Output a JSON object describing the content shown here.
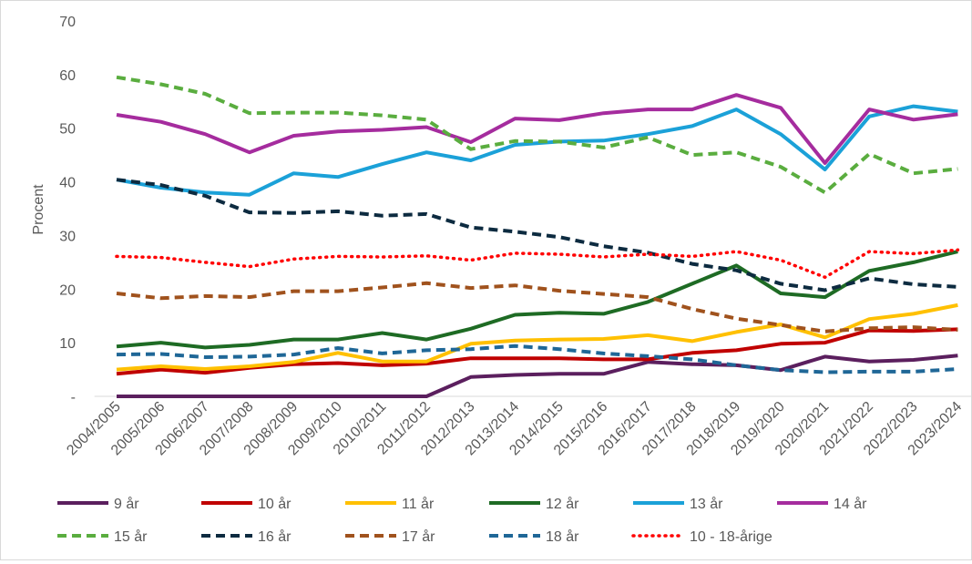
{
  "chart_data": {
    "type": "line",
    "title": "",
    "xlabel": "",
    "ylabel": "Procent",
    "ylim": [
      0,
      70
    ],
    "yticks": [
      0,
      10,
      20,
      30,
      40,
      50,
      60,
      70
    ],
    "ytick_labels": [
      "-",
      "10",
      "20",
      "30",
      "40",
      "50",
      "60",
      "70"
    ],
    "grid": false,
    "legend_position": "bottom",
    "categories": [
      "2004/2005",
      "2005/2006",
      "2006/2007",
      "2007/2008",
      "2008/2009",
      "2009/2010",
      "2010/2011",
      "2011/2012",
      "2012/2013",
      "2013/2014",
      "2014/2015",
      "2015/2016",
      "2016/2017",
      "2017/2018",
      "2018/2019",
      "2019/2020",
      "2020/2021",
      "2021/2022",
      "2022/2023",
      "2023/2024"
    ],
    "series": [
      {
        "name": "9 år",
        "color": "#5b1f5e",
        "dash": "solid",
        "values": [
          0,
          0,
          0,
          0,
          0,
          0,
          0,
          0,
          3.6,
          4.0,
          4.2,
          4.2,
          6.4,
          6.0,
          5.8,
          4.9,
          7.4,
          6.5,
          6.8,
          7.6
        ]
      },
      {
        "name": "10 år",
        "color": "#c00000",
        "dash": "solid",
        "values": [
          4.2,
          5.0,
          4.4,
          5.3,
          6.0,
          6.2,
          5.8,
          6.1,
          7.1,
          7.1,
          7.1,
          6.9,
          6.9,
          8.1,
          8.6,
          9.8,
          10.0,
          12.3,
          12.2,
          12.5
        ]
      },
      {
        "name": "11 år",
        "color": "#ffc000",
        "dash": "solid",
        "values": [
          5.0,
          5.6,
          5.1,
          5.6,
          6.4,
          8.1,
          6.5,
          6.5,
          9.8,
          10.4,
          10.6,
          10.7,
          11.4,
          10.3,
          12.0,
          13.4,
          11.0,
          14.4,
          15.4,
          17.0
        ]
      },
      {
        "name": "12 år",
        "color": "#1e6b24",
        "dash": "solid",
        "values": [
          9.3,
          10.0,
          9.1,
          9.6,
          10.6,
          10.6,
          11.8,
          10.6,
          12.6,
          15.2,
          15.6,
          15.4,
          17.6,
          21.0,
          24.4,
          19.2,
          18.5,
          23.4,
          25.0,
          27.0
        ]
      },
      {
        "name": "13 år",
        "color": "#1ba1d8",
        "dash": "solid",
        "values": [
          40.4,
          38.9,
          38.0,
          37.6,
          41.6,
          40.9,
          43.3,
          45.5,
          44.0,
          46.9,
          47.5,
          47.7,
          48.9,
          50.4,
          53.5,
          48.9,
          42.3,
          52.2,
          54.1,
          53.1
        ]
      },
      {
        "name": "14 år",
        "color": "#a52c9e",
        "dash": "solid",
        "values": [
          52.5,
          51.2,
          48.9,
          45.5,
          48.6,
          49.4,
          49.7,
          50.2,
          47.4,
          51.8,
          51.5,
          52.8,
          53.5,
          53.5,
          56.2,
          53.8,
          43.5,
          53.5,
          51.6,
          52.6
        ]
      },
      {
        "name": "15 år",
        "color": "#5aad3f",
        "dash": "dash",
        "values": [
          59.5,
          58.2,
          56.4,
          52.8,
          52.9,
          52.9,
          52.4,
          51.6,
          46.1,
          47.6,
          47.5,
          46.4,
          48.3,
          45.0,
          45.5,
          42.8,
          38.0,
          45.2,
          41.6,
          42.4
        ]
      },
      {
        "name": "16 år",
        "color": "#0d2b40",
        "dash": "dash",
        "values": [
          40.4,
          39.4,
          37.4,
          34.3,
          34.2,
          34.5,
          33.7,
          34.0,
          31.5,
          30.7,
          29.7,
          28.0,
          26.8,
          24.7,
          23.5,
          21.0,
          19.8,
          22.0,
          20.9,
          20.4
        ]
      },
      {
        "name": "17 år",
        "color": "#a0521d",
        "dash": "dash",
        "values": [
          19.2,
          18.3,
          18.7,
          18.5,
          19.6,
          19.6,
          20.3,
          21.1,
          20.2,
          20.7,
          19.7,
          19.1,
          18.5,
          16.3,
          14.5,
          13.3,
          12.1,
          12.7,
          12.9,
          12.4
        ]
      },
      {
        "name": "18 år",
        "color": "#1f6797",
        "dash": "dash",
        "values": [
          7.8,
          7.9,
          7.3,
          7.4,
          7.8,
          9.0,
          8.0,
          8.6,
          8.8,
          9.4,
          8.8,
          8.0,
          7.5,
          6.9,
          5.8,
          4.9,
          4.5,
          4.6,
          4.6,
          5.1
        ]
      },
      {
        "name": "10 - 18-årige",
        "color": "#ff0000",
        "dash": "dot",
        "values": [
          26.1,
          25.9,
          25.0,
          24.2,
          25.6,
          26.1,
          26.0,
          26.2,
          25.4,
          26.7,
          26.5,
          26.0,
          26.5,
          26.1,
          27.0,
          25.4,
          22.2,
          27.0,
          26.6,
          27.3
        ]
      }
    ]
  }
}
